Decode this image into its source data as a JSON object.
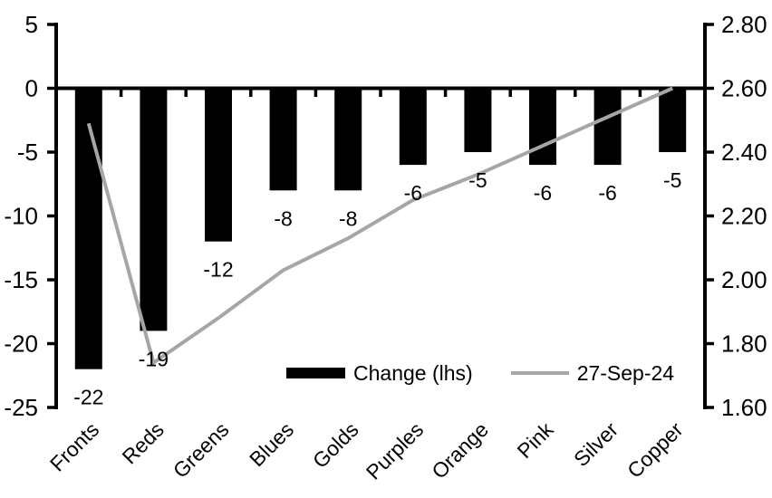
{
  "chart_data": {
    "type": "combo-bar-line",
    "title": "",
    "background": "#ffffff",
    "grid": false,
    "categories": [
      "Fronts",
      "Reds",
      "Greens",
      "Blues",
      "Golds",
      "Purples",
      "Orange",
      "Pink",
      "Silver",
      "Copper"
    ],
    "series": [
      {
        "name": "Change (lhs)",
        "type": "bar",
        "axis": "left",
        "color": "#000000",
        "values": [
          -22,
          -19,
          -12,
          -8,
          -8,
          -6,
          -5,
          -6,
          -6,
          -5
        ],
        "data_labels": [
          "-22",
          "-19",
          "-12",
          "-8",
          "-8",
          "-6",
          "-5",
          "-6",
          "-6",
          "-5"
        ]
      },
      {
        "name": "27-Sep-24",
        "type": "line",
        "axis": "right",
        "color": "#a6a6a6",
        "values": [
          2.49,
          1.74,
          1.88,
          2.03,
          2.13,
          2.25,
          2.33,
          2.42,
          2.51,
          2.6
        ]
      }
    ],
    "left_axis": {
      "min": -25,
      "max": 5,
      "tick_interval": 5,
      "tick_labels": [
        "5",
        "0",
        "-5",
        "-10",
        "-15",
        "-20",
        "-25"
      ]
    },
    "right_axis": {
      "min": 1.6,
      "max": 2.8,
      "tick_interval": 0.2,
      "tick_labels": [
        "2.80",
        "2.60",
        "2.40",
        "2.20",
        "2.00",
        "1.80",
        "1.60"
      ]
    },
    "legend": {
      "position": "inside-bottom-center",
      "entries": [
        {
          "label": "Change (lhs)",
          "swatch": "bar",
          "color": "#000000"
        },
        {
          "label": "27-Sep-24",
          "swatch": "line",
          "color": "#a6a6a6"
        }
      ]
    }
  }
}
